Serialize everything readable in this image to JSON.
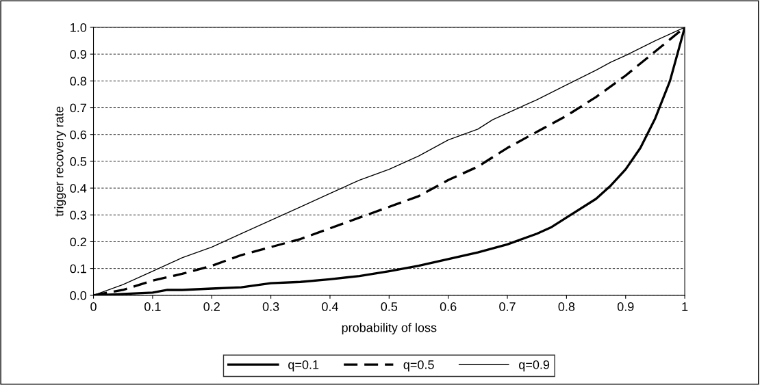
{
  "chart_data": {
    "type": "line",
    "xlabel": "probability of loss",
    "ylabel": "trigger recovery rate",
    "xlim": [
      0,
      1
    ],
    "ylim": [
      0,
      1
    ],
    "xticks": [
      0,
      0.1,
      0.2,
      0.3,
      0.4,
      0.5,
      0.6,
      0.7,
      0.8,
      0.9,
      1
    ],
    "yticks": [
      {
        "value": 0,
        "label": "0.0"
      },
      {
        "value": 0.1,
        "label": "0.1"
      },
      {
        "value": 0.2,
        "label": "0.2"
      },
      {
        "value": 0.3,
        "label": "0.3"
      },
      {
        "value": 0.4,
        "label": "0.4"
      },
      {
        "value": 0.5,
        "label": "0.5"
      },
      {
        "value": 0.6,
        "label": "0.6"
      },
      {
        "value": 0.7,
        "label": "0.7"
      },
      {
        "value": 0.8,
        "label": "0.8"
      },
      {
        "value": 0.9,
        "label": "0.9"
      },
      {
        "value": 1,
        "label": "1.0"
      }
    ],
    "grid": "y",
    "legend": "bottom",
    "marker": "none",
    "series": [
      {
        "name": "q=0.1",
        "color": "#000000",
        "line_style": "solid",
        "x": [
          0,
          0.1,
          0.125,
          0.15,
          0.2,
          0.25,
          0.3,
          0.35,
          0.4,
          0.45,
          0.5,
          0.55,
          0.6,
          0.65,
          0.7,
          0.75,
          0.775,
          0.8,
          0.85,
          0.875,
          0.9,
          0.925,
          0.95,
          0.975,
          1
        ],
        "values": [
          0,
          0.01,
          0.02,
          0.02,
          0.025,
          0.03,
          0.045,
          0.05,
          0.06,
          0.072,
          0.09,
          0.11,
          0.135,
          0.16,
          0.19,
          0.23,
          0.255,
          0.29,
          0.36,
          0.41,
          0.47,
          0.55,
          0.66,
          0.8,
          1
        ]
      },
      {
        "name": "q=0.5",
        "color": "#000000",
        "line_style": "dashed",
        "x": [
          0,
          0.05,
          0.1,
          0.15,
          0.2,
          0.25,
          0.3,
          0.35,
          0.4,
          0.45,
          0.5,
          0.55,
          0.6,
          0.65,
          0.7,
          0.75,
          0.8,
          0.85,
          0.9,
          0.95,
          1
        ],
        "values": [
          0,
          0.02,
          0.055,
          0.08,
          0.11,
          0.15,
          0.18,
          0.21,
          0.25,
          0.29,
          0.33,
          0.37,
          0.43,
          0.48,
          0.55,
          0.61,
          0.67,
          0.74,
          0.82,
          0.91,
          1
        ]
      },
      {
        "name": "q=0.9",
        "color": "#000000",
        "line_style": "solid",
        "x": [
          0,
          0.05,
          0.1,
          0.15,
          0.2,
          0.25,
          0.3,
          0.35,
          0.4,
          0.45,
          0.5,
          0.55,
          0.575,
          0.6,
          0.65,
          0.675,
          0.7,
          0.75,
          0.8,
          0.85,
          0.875,
          0.9,
          0.95,
          1
        ],
        "values": [
          0,
          0.04,
          0.09,
          0.14,
          0.18,
          0.23,
          0.28,
          0.33,
          0.38,
          0.43,
          0.47,
          0.52,
          0.55,
          0.58,
          0.62,
          0.655,
          0.68,
          0.73,
          0.785,
          0.84,
          0.87,
          0.895,
          0.95,
          1
        ]
      }
    ]
  }
}
